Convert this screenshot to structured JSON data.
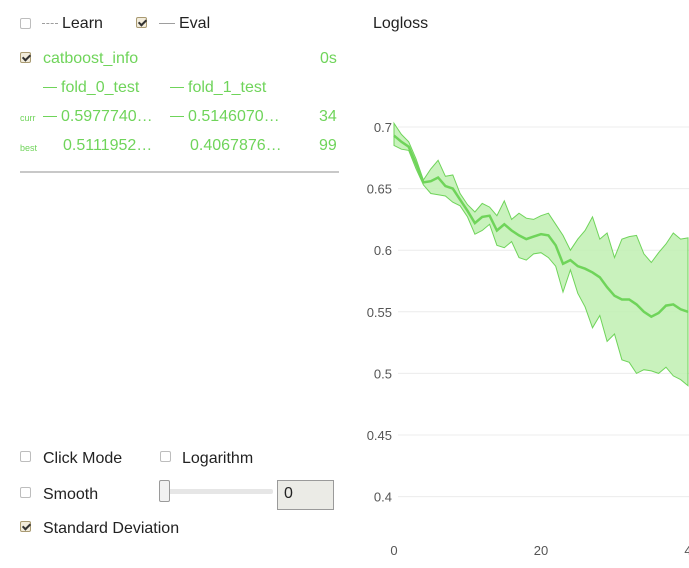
{
  "legend": {
    "learn_label": "Learn",
    "learn_checked": false,
    "eval_label": "Eval",
    "eval_checked": true
  },
  "run": {
    "name": "catboost_info",
    "time": "0s",
    "checked": true,
    "folds": [
      "fold_0_test",
      "fold_1_test"
    ],
    "curr_label": "curr",
    "best_label": "best",
    "curr_values": [
      "0.5977740…",
      "0.5146070…"
    ],
    "curr_iter": "34",
    "best_values": [
      "0.5111952…",
      "0.4067876…"
    ],
    "best_iter": "99"
  },
  "controls": {
    "click_mode_label": "Click Mode",
    "click_mode_checked": false,
    "logarithm_label": "Logarithm",
    "logarithm_checked": false,
    "smooth_label": "Smooth",
    "smooth_checked": false,
    "smooth_value": "0",
    "std_dev_label": "Standard Deviation",
    "std_dev_checked": true
  },
  "chart_data": {
    "type": "line",
    "title": "Logloss",
    "xlabel": "",
    "ylabel": "",
    "y_ticks": [
      "0.4",
      "0.45",
      "0.5",
      "0.55",
      "0.6",
      "0.65",
      "0.7"
    ],
    "x_ticks": [
      "0",
      "20",
      "4"
    ],
    "series_color": "#6fd45a",
    "band_color": "#bff0b2",
    "grid": true,
    "x": [
      0,
      1,
      2,
      3,
      4,
      5,
      6,
      7,
      8,
      9,
      10,
      11,
      12,
      13,
      14,
      15,
      16,
      17,
      18,
      19,
      20,
      21,
      22,
      23,
      24,
      25,
      26,
      27,
      28,
      29,
      30,
      31,
      32,
      33,
      34,
      35,
      36,
      37,
      38,
      39,
      40
    ],
    "mean": [
      0.693,
      0.688,
      0.684,
      0.67,
      0.655,
      0.656,
      0.659,
      0.652,
      0.65,
      0.641,
      0.632,
      0.622,
      0.627,
      0.628,
      0.616,
      0.621,
      0.616,
      0.612,
      0.609,
      0.611,
      0.613,
      0.612,
      0.604,
      0.589,
      0.592,
      0.587,
      0.585,
      0.582,
      0.578,
      0.57,
      0.563,
      0.56,
      0.56,
      0.556,
      0.55,
      0.546,
      0.549,
      0.555,
      0.556,
      0.552,
      0.55
    ],
    "upper": [
      0.703,
      0.694,
      0.688,
      0.674,
      0.657,
      0.666,
      0.673,
      0.66,
      0.661,
      0.646,
      0.637,
      0.631,
      0.638,
      0.635,
      0.628,
      0.64,
      0.625,
      0.63,
      0.626,
      0.625,
      0.628,
      0.63,
      0.621,
      0.612,
      0.6,
      0.609,
      0.616,
      0.627,
      0.609,
      0.614,
      0.594,
      0.609,
      0.611,
      0.612,
      0.597,
      0.59,
      0.598,
      0.605,
      0.614,
      0.609,
      0.61
    ],
    "lower": [
      0.685,
      0.682,
      0.681,
      0.666,
      0.653,
      0.646,
      0.645,
      0.644,
      0.639,
      0.636,
      0.627,
      0.613,
      0.616,
      0.621,
      0.604,
      0.602,
      0.607,
      0.594,
      0.592,
      0.597,
      0.598,
      0.594,
      0.587,
      0.566,
      0.584,
      0.565,
      0.554,
      0.537,
      0.547,
      0.526,
      0.532,
      0.511,
      0.509,
      0.5,
      0.503,
      0.502,
      0.5,
      0.505,
      0.498,
      0.495,
      0.49
    ]
  }
}
